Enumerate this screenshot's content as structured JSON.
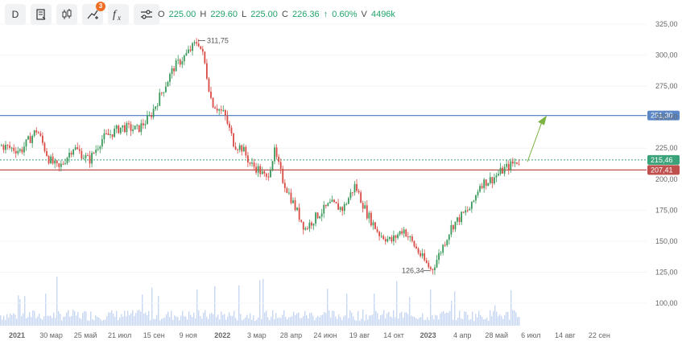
{
  "toolbar": {
    "interval_label": "D",
    "alerts_badge": "3",
    "fx_label": "f"
  },
  "ohlc": {
    "o_label": "O",
    "o_value": "225.00",
    "h_label": "H",
    "h_value": "229.60",
    "l_label": "L",
    "l_value": "225.00",
    "c_label": "C",
    "c_value": "226.36",
    "change_arrow": "↑",
    "change_value": "0.60%",
    "v_label": "V",
    "v_value": "4496k"
  },
  "colors": {
    "up": "#3a9a5b",
    "down": "#d94a44",
    "blue_line": "#5b87c7",
    "red_line": "#c0504d",
    "green_line": "#3aa37a",
    "volume": "#c9d8f2",
    "arrow": "#7cb342"
  },
  "chart_data": {
    "type": "candlestick",
    "y_ticks": [
      "325,00",
      "300,00",
      "275,00",
      "250,00",
      "225,00",
      "200,00",
      "175,00",
      "150,00",
      "125,00",
      "100,00"
    ],
    "y_tick_values": [
      325,
      300,
      275,
      250,
      225,
      200,
      175,
      150,
      125,
      100
    ],
    "x_ticks": [
      "2021",
      "30 мар",
      "25 май",
      "21 июл",
      "15 сен",
      "9 ноя",
      "2022",
      "3 мар",
      "28 апр",
      "24 июн",
      "19 авг",
      "14 окт",
      "2023",
      "4 апр",
      "28 май",
      "6 июл",
      "14 авг",
      "22 сен"
    ],
    "x_tick_bold": [
      "2021",
      "2022",
      "2023"
    ],
    "ylim": [
      88,
      333
    ],
    "price_path": [
      [
        0,
        227
      ],
      [
        25,
        223
      ],
      [
        45,
        240
      ],
      [
        60,
        216
      ],
      [
        72,
        208
      ],
      [
        90,
        226
      ],
      [
        110,
        215
      ],
      [
        125,
        232
      ],
      [
        140,
        238
      ],
      [
        150,
        242
      ],
      [
        170,
        240
      ],
      [
        185,
        250
      ],
      [
        200,
        270
      ],
      [
        215,
        290
      ],
      [
        230,
        300
      ],
      [
        245,
        311.75
      ],
      [
        252,
        298
      ],
      [
        262,
        262
      ],
      [
        278,
        252
      ],
      [
        290,
        228
      ],
      [
        300,
        225
      ],
      [
        310,
        212
      ],
      [
        320,
        208
      ],
      [
        330,
        200
      ],
      [
        340,
        222
      ],
      [
        350,
        200
      ],
      [
        365,
        178
      ],
      [
        378,
        160
      ],
      [
        395,
        172
      ],
      [
        410,
        180
      ],
      [
        425,
        176
      ],
      [
        440,
        195
      ],
      [
        455,
        172
      ],
      [
        470,
        156
      ],
      [
        485,
        150
      ],
      [
        500,
        160
      ],
      [
        515,
        145
      ],
      [
        525,
        135
      ],
      [
        535,
        126.34
      ],
      [
        545,
        140
      ],
      [
        560,
        162
      ],
      [
        575,
        172
      ],
      [
        585,
        178
      ],
      [
        595,
        196
      ],
      [
        610,
        200
      ],
      [
        625,
        208
      ],
      [
        640,
        214
      ],
      [
        645,
        215.46
      ]
    ],
    "annotations": {
      "high_label": "311,75",
      "high_value": 311.75,
      "low_label": "126,34",
      "low_value": 126.34
    },
    "levels": [
      {
        "label": "251,30",
        "value": 251.3,
        "style": "solid",
        "color": "#5b87c7"
      },
      {
        "label": "215,46",
        "value": 215.46,
        "style": "dotted",
        "color": "#3aa37a"
      },
      {
        "label": "207,41",
        "value": 207.41,
        "style": "solid",
        "color": "#c0504d"
      }
    ],
    "arrow": {
      "from": 214,
      "to": 251.3
    }
  }
}
